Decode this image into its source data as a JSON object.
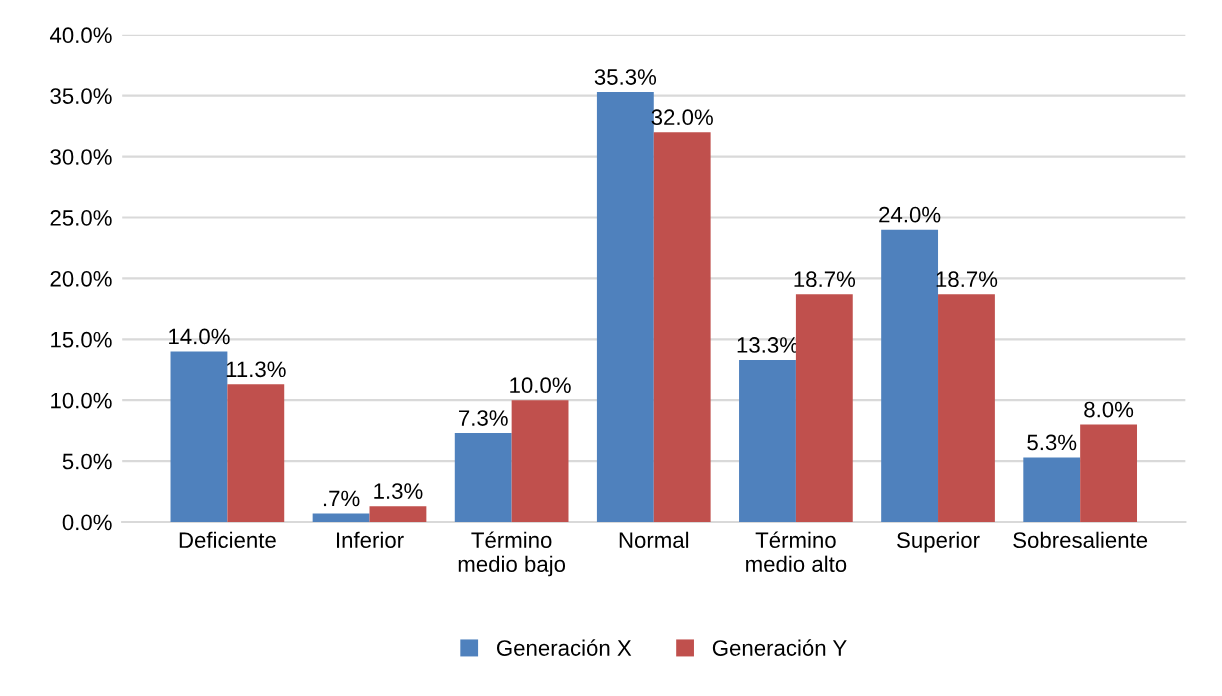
{
  "chart_data": {
    "type": "bar",
    "categories": [
      "Deficiente",
      "Inferior",
      "Término\nmedio bajo",
      "Normal",
      "Término\nmedio alto",
      "Superior",
      "Sobresaliente"
    ],
    "series": [
      {
        "name": "Generación X",
        "color": "#4f81bd",
        "values": [
          14.0,
          0.7,
          7.3,
          35.3,
          13.3,
          24.0,
          5.3
        ],
        "value_labels": [
          "14.0%",
          ".7%",
          "7.3%",
          "35.3%",
          "13.3%",
          "24.0%",
          "5.3%"
        ]
      },
      {
        "name": "Generación Y",
        "color": "#c0504d",
        "values": [
          11.3,
          1.3,
          10.0,
          32.0,
          18.7,
          18.7,
          8.0
        ],
        "value_labels": [
          "11.3%",
          "1.3%",
          "10.0%",
          "32.0%",
          "18.7%",
          "18.7%",
          "8.0%"
        ]
      }
    ],
    "ylim": [
      0,
      40
    ],
    "yticks": [
      {
        "value": 0,
        "label": "0.0%"
      },
      {
        "value": 5,
        "label": "5.0%"
      },
      {
        "value": 10,
        "label": "10.0%"
      },
      {
        "value": 15,
        "label": "15.0%"
      },
      {
        "value": 20,
        "label": "20.0%"
      },
      {
        "value": 25,
        "label": "25.0%"
      },
      {
        "value": 30,
        "label": "30.0%"
      },
      {
        "value": 35,
        "label": "35.0%"
      },
      {
        "value": 40,
        "label": "40.0%"
      }
    ],
    "grid": "y",
    "legend": "bottom"
  }
}
